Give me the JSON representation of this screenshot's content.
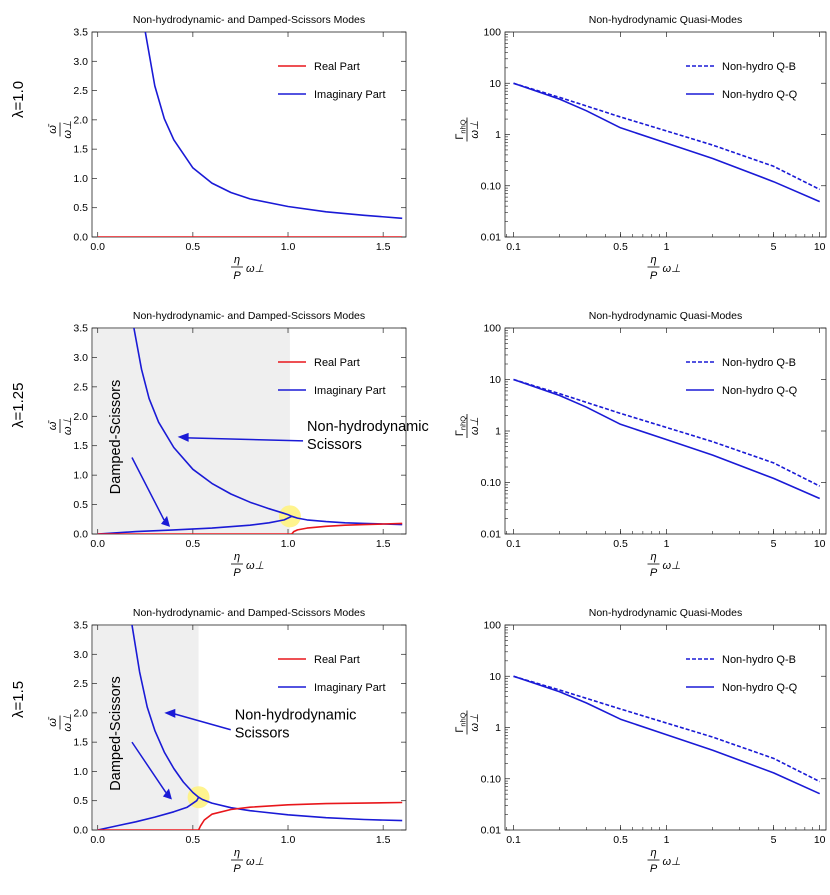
{
  "rows": [
    {
      "lambda_label": "λ=1.0"
    },
    {
      "lambda_label": "λ=1.25"
    },
    {
      "lambda_label": "λ=1.5"
    }
  ],
  "colors": {
    "real": "#e8161b",
    "imag": "#1a1ad6",
    "shade": "#efefef",
    "highlight": "#fff27a"
  },
  "chart_data": [
    {
      "type": "line",
      "title": "Non-hydrodynamic- and Damped-Scissors Modes",
      "ylabel_num": "ω̄",
      "ylabel_den": "ω⊥",
      "xlabel_num": "η",
      "xlabel_den": "P",
      "xlabel_tail": "ω⊥",
      "xlim": [
        -0.03,
        1.62
      ],
      "ylim": [
        0,
        3.5
      ],
      "xticks": [
        0,
        0.5,
        1,
        1.5
      ],
      "xtick_labels": [
        "0.0",
        "0.5",
        "1.0",
        "1.5"
      ],
      "yticks": [
        0,
        0.5,
        1,
        1.5,
        2,
        2.5,
        3,
        3.5
      ],
      "ytick_labels": [
        "0.0",
        "0.5",
        "1.0",
        "1.5",
        "2.0",
        "2.5",
        "3.0",
        "3.5"
      ],
      "legend": [
        "Real Part",
        "Imaginary Part"
      ],
      "series": [
        {
          "name": "Imaginary Part",
          "x": [
            0.25,
            0.3,
            0.35,
            0.4,
            0.5,
            0.6,
            0.7,
            0.8,
            1.0,
            1.2,
            1.4,
            1.6
          ],
          "y": [
            3.5,
            2.58,
            2.02,
            1.66,
            1.18,
            0.92,
            0.76,
            0.65,
            0.52,
            0.43,
            0.37,
            0.32
          ]
        },
        {
          "name": "Real Part",
          "x": [
            0,
            1.6
          ],
          "y": [
            0,
            0
          ]
        }
      ],
      "shade_x": null,
      "highlight": null,
      "annotations": []
    },
    {
      "type": "log-log line",
      "title": "Non-hydrodynamic Quasi-Modes",
      "ylabel_sym": "Γ",
      "ylabel_sub": "nhQ",
      "ylabel_den": "ω⊥",
      "xlabel_num": "η",
      "xlabel_den": "P",
      "xlabel_tail": "ω⊥",
      "xlim": [
        0.088,
        11
      ],
      "ylim": [
        0.01,
        100
      ],
      "xticks": [
        0.1,
        0.5,
        1,
        5,
        10
      ],
      "xtick_labels": [
        "0.1",
        "0.5",
        "1",
        "5",
        "10"
      ],
      "yticks": [
        0.01,
        0.1,
        1,
        10,
        100
      ],
      "ytick_labels": [
        "0.01",
        "0.10",
        "1",
        "10",
        "100"
      ],
      "legend": [
        "Non-hydro Q-B",
        "Non-hydro Q-Q"
      ],
      "series": [
        {
          "name": "Non-hydro Q-B",
          "x": [
            0.1,
            0.2,
            0.3,
            0.5,
            1,
            2,
            5,
            10
          ],
          "y": [
            10,
            5.3,
            3.6,
            2.2,
            1.17,
            0.62,
            0.24,
            0.085
          ]
        },
        {
          "name": "Non-hydro Q-Q",
          "x": [
            0.1,
            0.2,
            0.3,
            0.5,
            1,
            2,
            5,
            10
          ],
          "y": [
            10,
            4.9,
            2.9,
            1.35,
            0.68,
            0.34,
            0.12,
            0.049
          ]
        }
      ]
    },
    {
      "type": "line",
      "title": "Non-hydrodynamic- and Damped-Scissors Modes",
      "ylabel_num": "ω̄",
      "ylabel_den": "ω⊥",
      "xlabel_num": "η",
      "xlabel_den": "P",
      "xlabel_tail": "ω⊥",
      "xlim": [
        -0.03,
        1.62
      ],
      "ylim": [
        0,
        3.5
      ],
      "xticks": [
        0,
        0.5,
        1,
        1.5
      ],
      "xtick_labels": [
        "0.0",
        "0.5",
        "1.0",
        "1.5"
      ],
      "yticks": [
        0,
        0.5,
        1,
        1.5,
        2,
        2.5,
        3,
        3.5
      ],
      "ytick_labels": [
        "0.0",
        "0.5",
        "1.0",
        "1.5",
        "2.0",
        "2.5",
        "3.0",
        "3.5"
      ],
      "legend": [
        "Real Part",
        "Imaginary Part"
      ],
      "series": [
        {
          "name": "Imaginary Part",
          "x": [
            0.19,
            0.23,
            0.27,
            0.32,
            0.4,
            0.5,
            0.6,
            0.7,
            0.8,
            0.9,
            0.97,
            1.0,
            1.02,
            1.05,
            1.1,
            1.2,
            1.3,
            1.4,
            1.5,
            1.6
          ],
          "y": [
            3.5,
            2.8,
            2.3,
            1.9,
            1.47,
            1.1,
            0.86,
            0.68,
            0.54,
            0.43,
            0.36,
            0.33,
            0.3,
            0.27,
            0.24,
            0.21,
            0.19,
            0.18,
            0.17,
            0.16
          ]
        },
        {
          "name": "Imaginary Part",
          "x": [
            0,
            0.2,
            0.4,
            0.6,
            0.8,
            0.9,
            0.98,
            1.02
          ],
          "y": [
            0,
            0.04,
            0.07,
            0.1,
            0.15,
            0.19,
            0.24,
            0.3
          ]
        },
        {
          "name": "Real Part",
          "x": [
            0,
            1.02
          ],
          "y": [
            0,
            0
          ]
        },
        {
          "name": "Real Part",
          "x": [
            1.02,
            1.03,
            1.05,
            1.1,
            1.2,
            1.3,
            1.4,
            1.5,
            1.6
          ],
          "y": [
            0,
            0.04,
            0.07,
            0.1,
            0.13,
            0.15,
            0.16,
            0.17,
            0.18
          ]
        }
      ],
      "shade_x": [
        0,
        1.01
      ],
      "highlight": {
        "x": 1.01,
        "y": 0.3
      },
      "annotations": [
        {
          "id": "nonhydro",
          "text_lines": [
            "Non-hydrodynamic",
            "Scissors"
          ],
          "tx": 1.1,
          "ty": 1.65,
          "ax": 0.42,
          "ay": 1.65
        },
        {
          "id": "damped",
          "text_lines": [
            "Damped-Scissors"
          ],
          "tx": 0.18,
          "ty": 1.3,
          "ax": 0.38,
          "ay": 0.12
        }
      ]
    },
    {
      "type": "log-log line",
      "title": "Non-hydrodynamic Quasi-Modes",
      "ylabel_sym": "Γ",
      "ylabel_sub": "nhQ",
      "ylabel_den": "ω⊥",
      "xlabel_num": "η",
      "xlabel_den": "P",
      "xlabel_tail": "ω⊥",
      "xlim": [
        0.088,
        11
      ],
      "ylim": [
        0.01,
        100
      ],
      "xticks": [
        0.1,
        0.5,
        1,
        5,
        10
      ],
      "xtick_labels": [
        "0.1",
        "0.5",
        "1",
        "5",
        "10"
      ],
      "yticks": [
        0.01,
        0.1,
        1,
        10,
        100
      ],
      "ytick_labels": [
        "0.01",
        "0.10",
        "1",
        "10",
        "100"
      ],
      "legend": [
        "Non-hydro Q-B",
        "Non-hydro Q-Q"
      ],
      "series": [
        {
          "name": "Non-hydro Q-B",
          "x": [
            0.1,
            0.2,
            0.3,
            0.5,
            1,
            2,
            5,
            10
          ],
          "y": [
            10,
            5.3,
            3.6,
            2.2,
            1.17,
            0.62,
            0.24,
            0.085
          ]
        },
        {
          "name": "Non-hydro Q-Q",
          "x": [
            0.1,
            0.2,
            0.3,
            0.5,
            1,
            2,
            5,
            10
          ],
          "y": [
            10,
            4.9,
            2.9,
            1.35,
            0.68,
            0.34,
            0.12,
            0.049
          ]
        }
      ]
    },
    {
      "type": "line",
      "title": "Non-hydrodynamic- and Damped-Scissors Modes",
      "ylabel_num": "ω̄",
      "ylabel_den": "ω⊥",
      "xlabel_num": "η",
      "xlabel_den": "P",
      "xlabel_tail": "ω⊥",
      "xlim": [
        -0.03,
        1.62
      ],
      "ylim": [
        0,
        3.5
      ],
      "xticks": [
        0,
        0.5,
        1,
        1.5
      ],
      "xtick_labels": [
        "0.0",
        "0.5",
        "1.0",
        "1.5"
      ],
      "yticks": [
        0,
        0.5,
        1,
        1.5,
        2,
        2.5,
        3,
        3.5
      ],
      "ytick_labels": [
        "0.0",
        "0.5",
        "1.0",
        "1.5",
        "2.0",
        "2.5",
        "3.0",
        "3.5"
      ],
      "legend": [
        "Real Part",
        "Imaginary Part"
      ],
      "series": [
        {
          "name": "Imaginary Part",
          "x": [
            0.18,
            0.22,
            0.26,
            0.3,
            0.35,
            0.4,
            0.45,
            0.5,
            0.53,
            0.55,
            0.6,
            0.7,
            0.8,
            1.0,
            1.2,
            1.4,
            1.6
          ],
          "y": [
            3.5,
            2.7,
            2.1,
            1.7,
            1.33,
            1.05,
            0.82,
            0.64,
            0.56,
            0.52,
            0.46,
            0.38,
            0.33,
            0.26,
            0.21,
            0.18,
            0.16
          ]
        },
        {
          "name": "Imaginary Part",
          "x": [
            0,
            0.1,
            0.2,
            0.3,
            0.4,
            0.47,
            0.52,
            0.53
          ],
          "y": [
            0,
            0.07,
            0.14,
            0.22,
            0.31,
            0.39,
            0.5,
            0.56
          ]
        },
        {
          "name": "Real Part",
          "x": [
            0,
            0.53
          ],
          "y": [
            0,
            0
          ]
        },
        {
          "name": "Real Part",
          "x": [
            0.53,
            0.54,
            0.56,
            0.6,
            0.7,
            0.8,
            1.0,
            1.2,
            1.4,
            1.6
          ],
          "y": [
            0,
            0.07,
            0.17,
            0.27,
            0.35,
            0.39,
            0.43,
            0.45,
            0.46,
            0.47
          ]
        }
      ],
      "shade_x": [
        0,
        0.53
      ],
      "highlight": {
        "x": 0.53,
        "y": 0.56
      },
      "annotations": [
        {
          "id": "nonhydro",
          "text_lines": [
            "Non-hydrodynamic",
            "Scissors"
          ],
          "tx": 0.72,
          "ty": 1.78,
          "ax": 0.35,
          "ay": 2.0
        },
        {
          "id": "damped",
          "text_lines": [
            "Damped-Scissors"
          ],
          "tx": 0.18,
          "ty": 1.5,
          "ax": 0.39,
          "ay": 0.52
        }
      ]
    },
    {
      "type": "log-log line",
      "title": "Non-hydrodynamic Quasi-Modes",
      "ylabel_sym": "Γ",
      "ylabel_sub": "nhQ",
      "ylabel_den": "ω⊥",
      "xlabel_num": "η",
      "xlabel_den": "P",
      "xlabel_tail": "ω⊥",
      "xlim": [
        0.088,
        11
      ],
      "ylim": [
        0.01,
        100
      ],
      "xticks": [
        0.1,
        0.5,
        1,
        5,
        10
      ],
      "xtick_labels": [
        "0.1",
        "0.5",
        "1",
        "5",
        "10"
      ],
      "yticks": [
        0.01,
        0.1,
        1,
        10,
        100
      ],
      "ytick_labels": [
        "0.01",
        "0.10",
        "1",
        "10",
        "100"
      ],
      "legend": [
        "Non-hydro Q-B",
        "Non-hydro Q-Q"
      ],
      "series": [
        {
          "name": "Non-hydro Q-B",
          "x": [
            0.1,
            0.2,
            0.3,
            0.5,
            1,
            2,
            5,
            10
          ],
          "y": [
            10,
            5.4,
            3.7,
            2.3,
            1.22,
            0.65,
            0.25,
            0.088
          ]
        },
        {
          "name": "Non-hydro Q-Q",
          "x": [
            0.1,
            0.2,
            0.3,
            0.5,
            1,
            2,
            5,
            10
          ],
          "y": [
            10,
            5.0,
            3.0,
            1.45,
            0.72,
            0.36,
            0.13,
            0.051
          ]
        }
      ]
    }
  ]
}
